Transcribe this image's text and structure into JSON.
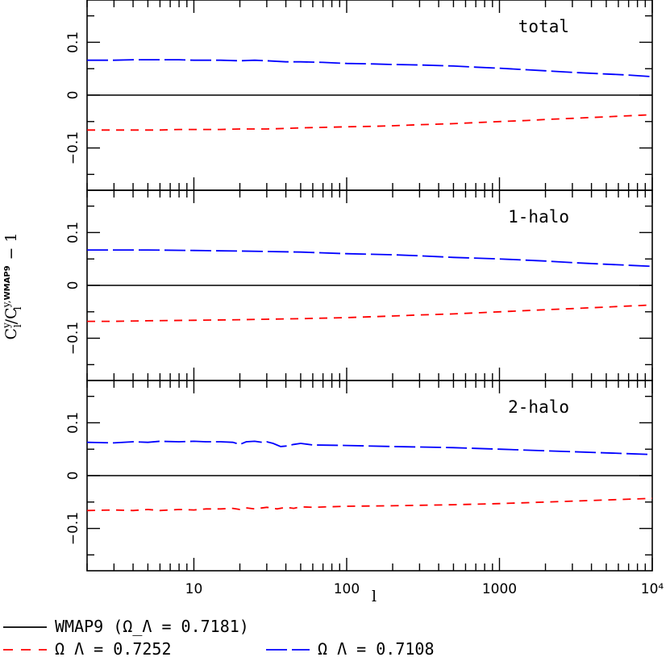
{
  "chart_data": {
    "type": "line",
    "xlabel": "l",
    "ylabel": "C_l^y / C_l^{y,WMAP9} − 1",
    "x_scale": "log",
    "xlim": [
      2,
      10000
    ],
    "ylim": [
      -0.18,
      0.18
    ],
    "x_ticks": [
      "10",
      "100",
      "1000",
      "10⁴"
    ],
    "y_ticks": [
      "0.1",
      "0",
      "−0.1"
    ],
    "panels": [
      {
        "label": "total",
        "series": [
          {
            "name": "WMAP9 (Ω_Λ = 0.7181)",
            "color": "#000000",
            "style": "solid",
            "x": [
              2,
              10000
            ],
            "y": [
              0,
              0
            ]
          },
          {
            "name": "Ω_Λ = 0.7252",
            "color": "#ff0000",
            "style": "dashed",
            "x": [
              2,
              3,
              4,
              5,
              6,
              8,
              10,
              15,
              20,
              25,
              30,
              40,
              50,
              70,
              100,
              150,
              200,
              300,
              500,
              700,
              1000,
              1500,
              2000,
              3000,
              5000,
              7000,
              10000
            ],
            "y": [
              -0.066,
              -0.066,
              -0.066,
              -0.066,
              -0.066,
              -0.065,
              -0.065,
              -0.065,
              -0.064,
              -0.064,
              -0.064,
              -0.063,
              -0.062,
              -0.061,
              -0.06,
              -0.059,
              -0.058,
              -0.056,
              -0.054,
              -0.052,
              -0.05,
              -0.048,
              -0.046,
              -0.044,
              -0.041,
              -0.039,
              -0.037
            ]
          },
          {
            "name": "Ω_Λ = 0.7108",
            "color": "#0000ff",
            "style": "longdash",
            "x": [
              2,
              3,
              4,
              5,
              6,
              8,
              10,
              15,
              20,
              25,
              30,
              40,
              50,
              70,
              100,
              150,
              200,
              300,
              500,
              700,
              1000,
              1500,
              2000,
              3000,
              5000,
              7000,
              10000
            ],
            "y": [
              0.066,
              0.066,
              0.067,
              0.067,
              0.067,
              0.067,
              0.066,
              0.066,
              0.065,
              0.066,
              0.065,
              0.063,
              0.063,
              0.062,
              0.06,
              0.059,
              0.058,
              0.057,
              0.055,
              0.053,
              0.051,
              0.048,
              0.046,
              0.043,
              0.04,
              0.038,
              0.035
            ]
          }
        ]
      },
      {
        "label": "1-halo",
        "series": [
          {
            "name": "WMAP9 (Ω_Λ = 0.7181)",
            "color": "#000000",
            "style": "solid",
            "x": [
              2,
              10000
            ],
            "y": [
              0,
              0
            ]
          },
          {
            "name": "Ω_Λ = 0.7252",
            "color": "#ff0000",
            "style": "dashed",
            "x": [
              2,
              3,
              5,
              10,
              20,
              30,
              50,
              100,
              200,
              300,
              500,
              1000,
              2000,
              3000,
              5000,
              10000
            ],
            "y": [
              -0.068,
              -0.068,
              -0.067,
              -0.066,
              -0.065,
              -0.064,
              -0.063,
              -0.061,
              -0.058,
              -0.056,
              -0.054,
              -0.05,
              -0.046,
              -0.044,
              -0.041,
              -0.037
            ]
          },
          {
            "name": "Ω_Λ = 0.7108",
            "color": "#0000ff",
            "style": "longdash",
            "x": [
              2,
              3,
              5,
              10,
              20,
              30,
              50,
              100,
              200,
              300,
              500,
              1000,
              2000,
              3000,
              5000,
              10000
            ],
            "y": [
              0.067,
              0.067,
              0.067,
              0.066,
              0.065,
              0.064,
              0.063,
              0.06,
              0.058,
              0.056,
              0.053,
              0.05,
              0.046,
              0.043,
              0.04,
              0.036
            ]
          }
        ]
      },
      {
        "label": "2-halo",
        "series": [
          {
            "name": "WMAP9 (Ω_Λ = 0.7181)",
            "color": "#000000",
            "style": "solid",
            "x": [
              2,
              10000
            ],
            "y": [
              0,
              0
            ]
          },
          {
            "name": "Ω_Λ = 0.7252",
            "color": "#ff0000",
            "style": "dashed",
            "x": [
              2,
              3,
              4,
              5,
              6,
              8,
              10,
              12,
              15,
              18,
              20,
              22,
              25,
              30,
              35,
              40,
              45,
              50,
              60,
              100,
              200,
              500,
              1000,
              2000,
              5000,
              10000
            ],
            "y": [
              -0.066,
              -0.065,
              -0.066,
              -0.064,
              -0.066,
              -0.064,
              -0.065,
              -0.063,
              -0.063,
              -0.062,
              -0.064,
              -0.061,
              -0.063,
              -0.06,
              -0.063,
              -0.06,
              -0.062,
              -0.059,
              -0.06,
              -0.058,
              -0.057,
              -0.055,
              -0.053,
              -0.05,
              -0.046,
              -0.043
            ]
          },
          {
            "name": "Ω_Λ = 0.7108",
            "color": "#0000ff",
            "style": "longdash",
            "x": [
              2,
              3,
              4,
              5,
              6,
              8,
              10,
              12,
              15,
              18,
              20,
              22,
              25,
              28,
              30,
              33,
              37,
              40,
              45,
              50,
              60,
              100,
              200,
              500,
              1000,
              2000,
              5000,
              10000
            ],
            "y": [
              0.063,
              0.062,
              0.064,
              0.063,
              0.065,
              0.064,
              0.065,
              0.064,
              0.064,
              0.063,
              0.059,
              0.064,
              0.065,
              0.063,
              0.064,
              0.061,
              0.055,
              0.056,
              0.059,
              0.061,
              0.058,
              0.057,
              0.055,
              0.053,
              0.05,
              0.047,
              0.043,
              0.04
            ]
          }
        ]
      }
    ],
    "legend": [
      {
        "label": "WMAP9 (Ω_Λ = 0.7181)",
        "color": "#000000",
        "style": "solid"
      },
      {
        "label": "Ω_Λ = 0.7252",
        "color": "#ff0000",
        "style": "dashed"
      },
      {
        "label": "Ω_Λ = 0.7108",
        "color": "#0000ff",
        "style": "longdash"
      }
    ]
  }
}
